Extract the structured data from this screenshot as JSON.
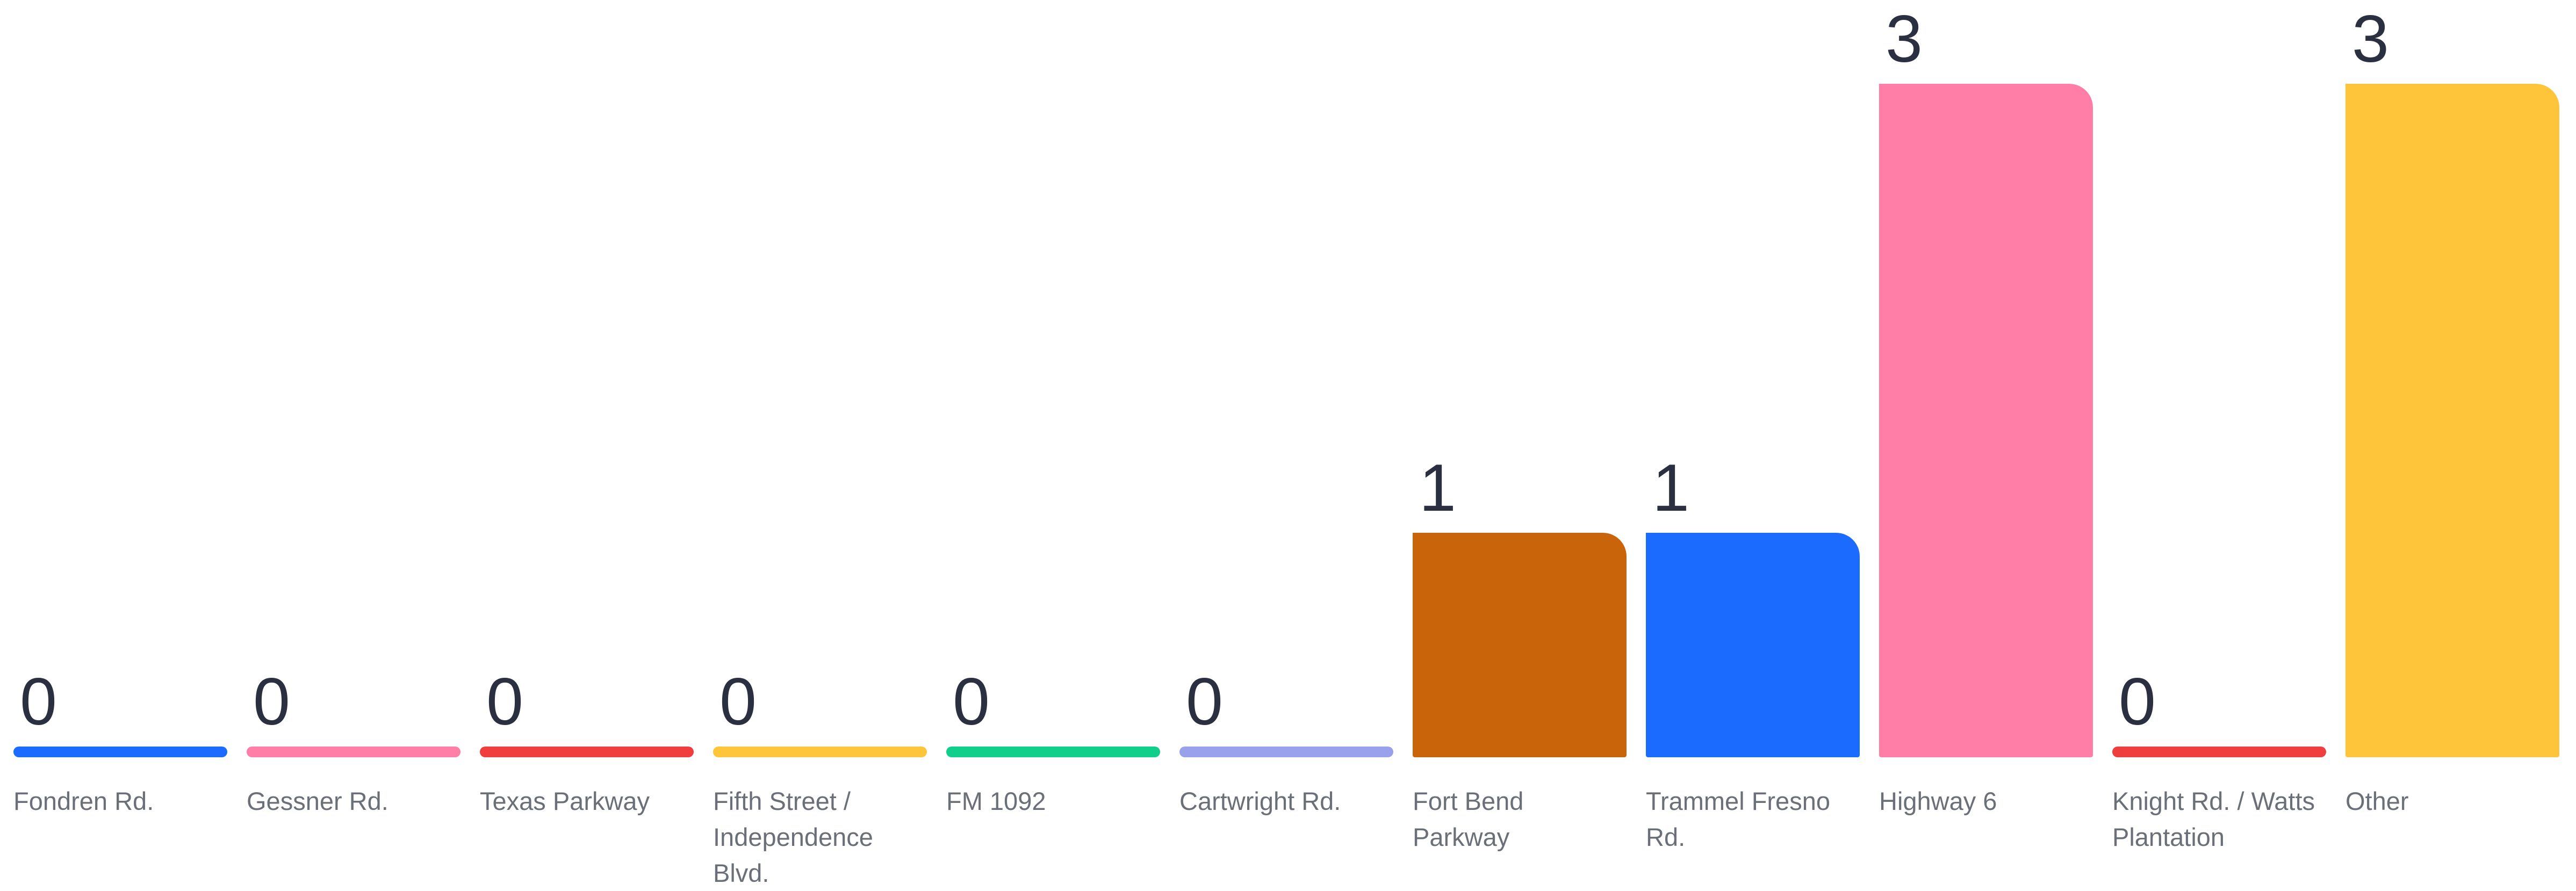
{
  "chart_data": {
    "type": "bar",
    "title": "",
    "xlabel": "",
    "ylabel": "",
    "ylim": [
      0,
      3
    ],
    "grid": false,
    "categories": [
      {
        "label": "Fondren Rd.",
        "lines": [
          "Fondren Rd."
        ],
        "value": 0,
        "color": "#1c6bff",
        "value_label": "0"
      },
      {
        "label": "Gessner Rd.",
        "lines": [
          "Gessner Rd."
        ],
        "value": 0,
        "color": "#ff7ea8",
        "value_label": "0"
      },
      {
        "label": "Texas Parkway",
        "lines": [
          "Texas Parkway"
        ],
        "value": 0,
        "color": "#f03e3e",
        "value_label": "0"
      },
      {
        "label": "Fifth Street / Independence Blvd.",
        "lines": [
          "Fifth Street /",
          "Independence",
          "Blvd."
        ],
        "value": 0,
        "color": "#ffc53a",
        "value_label": "0"
      },
      {
        "label": "FM 1092",
        "lines": [
          "FM 1092"
        ],
        "value": 0,
        "color": "#0fcf8a",
        "value_label": "0"
      },
      {
        "label": "Cartwright Rd.",
        "lines": [
          "Cartwright Rd."
        ],
        "value": 0,
        "color": "#9aa1ec",
        "value_label": "0"
      },
      {
        "label": "Fort Bend Parkway",
        "lines": [
          "Fort Bend",
          "Parkway"
        ],
        "value": 1,
        "color": "#c9640b",
        "value_label": "1"
      },
      {
        "label": "Trammel Fresno Rd.",
        "lines": [
          "Trammel Fresno",
          "Rd."
        ],
        "value": 1,
        "color": "#1c6bff",
        "value_label": "1"
      },
      {
        "label": "Highway 6",
        "lines": [
          "Highway 6"
        ],
        "value": 3,
        "color": "#ff7ea8",
        "value_label": "3"
      },
      {
        "label": "Knight Rd. / Watts Plantation",
        "lines": [
          "Knight Rd. / Watts",
          "Plantation"
        ],
        "value": 0,
        "color": "#f03e3e",
        "value_label": "0"
      },
      {
        "label": "Other",
        "lines": [
          "Other"
        ],
        "value": 3,
        "color": "#ffc53a",
        "value_label": "3"
      }
    ]
  }
}
